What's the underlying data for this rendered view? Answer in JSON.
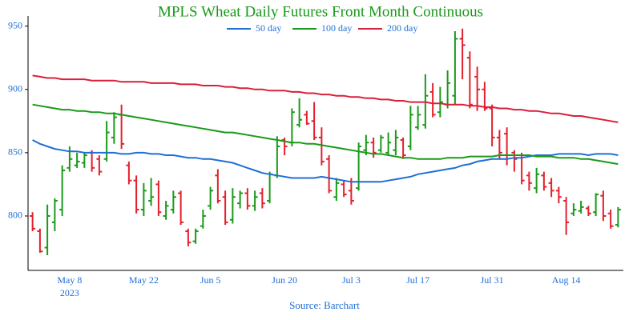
{
  "chart_data": {
    "type": "ohlc",
    "title": "MPLS Wheat Daily Futures Front Month Continuous",
    "title_color": "#1a9a1a",
    "source": "Source: Barchart",
    "x_year_label": "2023",
    "categories": [
      null,
      null,
      null,
      null,
      null,
      "May 8",
      null,
      null,
      null,
      null,
      null,
      null,
      null,
      null,
      null,
      "May 22",
      null,
      null,
      null,
      null,
      null,
      null,
      null,
      null,
      "Jun 5",
      null,
      null,
      null,
      null,
      null,
      null,
      null,
      null,
      null,
      "Jun 20",
      null,
      null,
      null,
      null,
      null,
      null,
      null,
      null,
      "Jul 3",
      null,
      null,
      null,
      null,
      null,
      null,
      null,
      null,
      "Jul 17",
      null,
      null,
      null,
      null,
      null,
      null,
      null,
      null,
      null,
      "Jul 31",
      null,
      null,
      null,
      null,
      null,
      null,
      null,
      null,
      null,
      "Aug 14",
      null,
      null,
      null,
      null,
      null,
      null,
      null
    ],
    "open": [
      800,
      788,
      775,
      795,
      805,
      838,
      840,
      842,
      850,
      845,
      845,
      862,
      880,
      840,
      828,
      805,
      812,
      825,
      800,
      805,
      818,
      788,
      780,
      792,
      808,
      832,
      815,
      797,
      810,
      818,
      808,
      818,
      812,
      832,
      860,
      858,
      872,
      880,
      875,
      862,
      845,
      815,
      825,
      820,
      822,
      852,
      858,
      852,
      850,
      852,
      860,
      855,
      870,
      872,
      898,
      882,
      888,
      895,
      940,
      925,
      910,
      900,
      885,
      862,
      865,
      850,
      848,
      832,
      822,
      832,
      826,
      820,
      812,
      802,
      804,
      806,
      803,
      816,
      802,
      793
    ],
    "high": [
      803,
      790,
      809,
      814,
      840,
      855,
      850,
      850,
      852,
      848,
      875,
      882,
      888,
      843,
      832,
      826,
      830,
      828,
      812,
      820,
      820,
      790,
      790,
      805,
      823,
      837,
      820,
      822,
      820,
      822,
      820,
      822,
      835,
      863,
      862,
      885,
      893,
      883,
      890,
      870,
      848,
      830,
      828,
      830,
      858,
      864,
      862,
      864,
      866,
      868,
      862,
      887,
      887,
      912,
      905,
      902,
      915,
      946,
      948,
      930,
      918,
      906,
      888,
      868,
      870,
      852,
      850,
      835,
      838,
      835,
      830,
      823,
      815,
      810,
      812,
      808,
      818,
      820,
      805,
      807
    ],
    "low": [
      788,
      771,
      769,
      788,
      800,
      835,
      838,
      838,
      835,
      832,
      843,
      857,
      853,
      825,
      802,
      800,
      808,
      800,
      797,
      802,
      793,
      776,
      778,
      790,
      805,
      810,
      793,
      794,
      806,
      805,
      804,
      806,
      810,
      830,
      848,
      855,
      870,
      872,
      860,
      840,
      818,
      812,
      815,
      809,
      820,
      848,
      846,
      850,
      848,
      848,
      845,
      852,
      868,
      869,
      878,
      878,
      885,
      888,
      908,
      885,
      883,
      883,
      855,
      845,
      840,
      835,
      825,
      820,
      818,
      820,
      815,
      810,
      785,
      800,
      802,
      800,
      800,
      796,
      790,
      791
    ],
    "close": [
      790,
      772,
      800,
      812,
      836,
      845,
      843,
      848,
      838,
      835,
      866,
      878,
      857,
      828,
      805,
      820,
      815,
      803,
      808,
      815,
      795,
      779,
      788,
      800,
      820,
      812,
      795,
      815,
      818,
      808,
      815,
      810,
      833,
      855,
      855,
      882,
      876,
      873,
      862,
      843,
      820,
      826,
      817,
      812,
      855,
      858,
      850,
      862,
      858,
      862,
      848,
      880,
      880,
      895,
      880,
      890,
      905,
      940,
      935,
      888,
      900,
      885,
      862,
      850,
      848,
      845,
      828,
      826,
      833,
      823,
      820,
      815,
      795,
      805,
      807,
      802,
      817,
      800,
      792,
      805
    ],
    "up_color": "#1a9a1a",
    "down_color": "#e3202c",
    "series": [
      {
        "name": "50 day",
        "color": "#1f6fd6",
        "values": [
          860,
          857,
          855,
          853,
          852,
          851,
          851,
          850,
          850,
          850,
          850,
          850,
          849,
          849,
          850,
          850,
          849,
          849,
          848,
          848,
          847,
          846,
          846,
          845,
          845,
          844,
          843,
          842,
          840,
          838,
          836,
          834,
          833,
          832,
          831,
          830,
          830,
          830,
          830,
          831,
          830,
          829,
          828,
          827,
          827,
          827,
          827,
          827,
          828,
          829,
          830,
          831,
          833,
          834,
          835,
          836,
          837,
          838,
          840,
          841,
          843,
          844,
          845,
          845,
          845,
          846,
          846,
          847,
          848,
          848,
          848,
          849,
          849,
          849,
          849,
          848,
          849,
          849,
          849,
          848
        ]
      },
      {
        "name": "100 day",
        "color": "#1a9a1a",
        "values": [
          888,
          887,
          886,
          885,
          884,
          884,
          883,
          883,
          882,
          882,
          881,
          881,
          880,
          879,
          878,
          877,
          876,
          875,
          874,
          873,
          872,
          871,
          870,
          869,
          868,
          867,
          866,
          866,
          865,
          864,
          863,
          862,
          861,
          860,
          859,
          858,
          858,
          857,
          857,
          856,
          855,
          854,
          853,
          852,
          851,
          850,
          849,
          849,
          848,
          847,
          846,
          846,
          845,
          845,
          845,
          845,
          846,
          846,
          846,
          847,
          847,
          847,
          847,
          848,
          848,
          848,
          848,
          848,
          847,
          847,
          847,
          846,
          846,
          846,
          845,
          845,
          844,
          843,
          842,
          841
        ]
      },
      {
        "name": "200 day",
        "color": "#d8203c",
        "values": [
          911,
          910,
          909,
          909,
          908,
          908,
          908,
          908,
          907,
          907,
          907,
          907,
          906,
          906,
          906,
          906,
          905,
          905,
          905,
          905,
          904,
          904,
          904,
          903,
          903,
          903,
          902,
          902,
          901,
          901,
          900,
          900,
          899,
          899,
          899,
          898,
          898,
          897,
          897,
          896,
          896,
          895,
          895,
          894,
          894,
          893,
          893,
          892,
          892,
          891,
          891,
          890,
          890,
          890,
          889,
          889,
          888,
          888,
          888,
          887,
          887,
          886,
          886,
          885,
          885,
          884,
          884,
          883,
          883,
          882,
          881,
          881,
          880,
          879,
          879,
          878,
          877,
          876,
          875,
          874
        ]
      }
    ],
    "ylim": [
      757,
      958
    ],
    "yticks": [
      800,
      850,
      900,
      950
    ],
    "tick_color": "#1f6fd6",
    "grid": false
  }
}
